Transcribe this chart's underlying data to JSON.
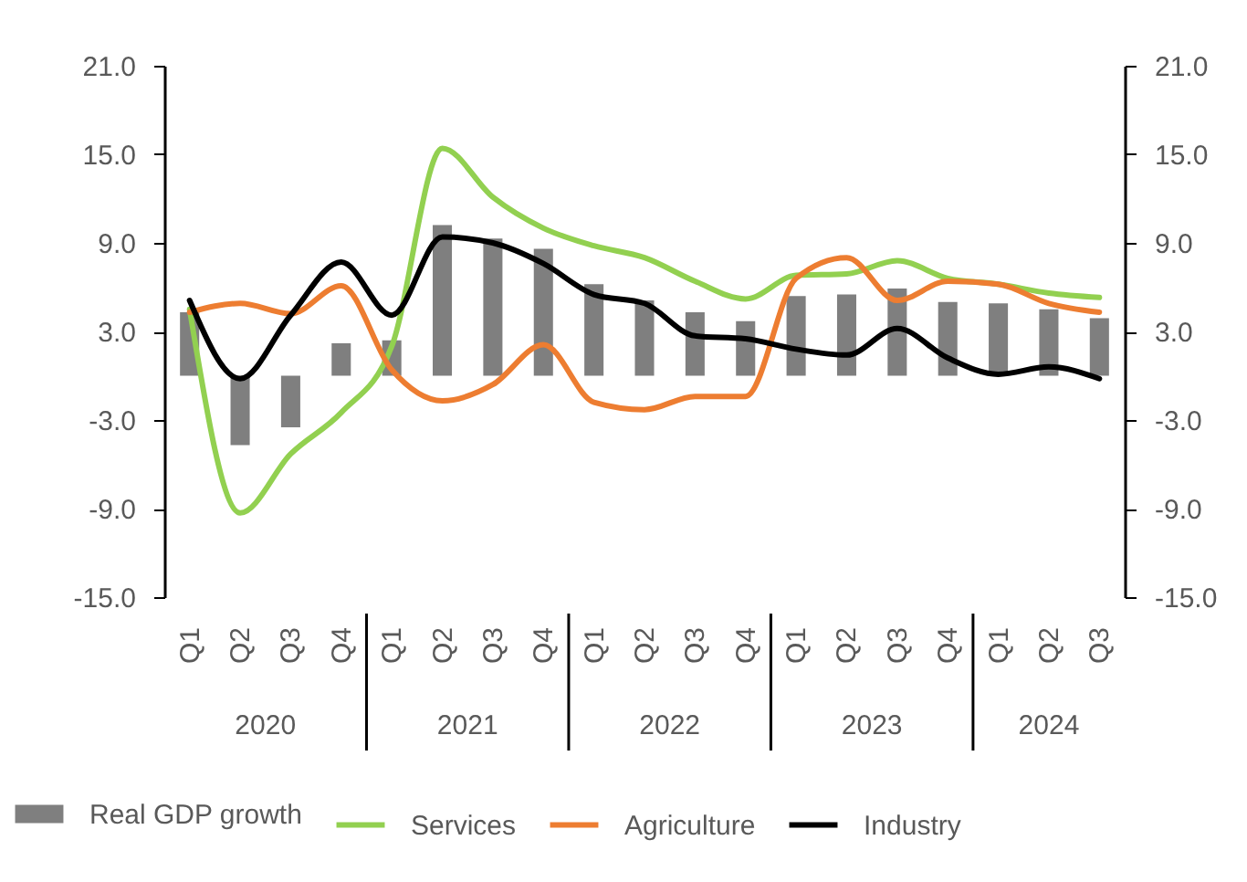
{
  "chart_data": {
    "type": "bar",
    "categories": [
      "Q1",
      "Q2",
      "Q3",
      "Q4",
      "Q1",
      "Q2",
      "Q3",
      "Q4",
      "Q1",
      "Q2",
      "Q3",
      "Q4",
      "Q1",
      "Q2",
      "Q3",
      "Q4",
      "Q1",
      "Q2",
      "Q3"
    ],
    "annotations": [
      "2020",
      "2021",
      "2022",
      "2023",
      "2024"
    ],
    "series": [
      {
        "name": "Real GDP growth",
        "color": "#7f7f7f",
        "values": [
          4.3,
          -4.7,
          -3.5,
          2.2,
          2.4,
          10.2,
          9.3,
          8.6,
          6.2,
          5.1,
          4.3,
          3.7,
          5.4,
          5.5,
          5.9,
          5.0,
          4.9,
          4.5,
          3.9
        ]
      },
      {
        "name": "Services",
        "type": "line",
        "color": "#92d050",
        "values": [
          4.5,
          -9.3,
          -5.3,
          -2.5,
          2.0,
          15.4,
          12.1,
          10.0,
          8.8,
          8.0,
          6.4,
          5.2,
          6.8,
          6.9,
          7.8,
          6.6,
          6.2,
          5.6,
          5.3
        ]
      },
      {
        "name": "Agriculture",
        "type": "line",
        "color": "#ed7d31",
        "values": [
          4.3,
          4.9,
          4.2,
          6.1,
          0.4,
          -1.7,
          -0.6,
          2.1,
          -1.8,
          -2.3,
          -1.4,
          -1.4,
          6.6,
          8.0,
          5.1,
          6.4,
          6.2,
          4.9,
          4.3
        ]
      },
      {
        "name": "Industry",
        "type": "line",
        "color": "#000000",
        "values": [
          5.1,
          -0.2,
          4.1,
          7.7,
          4.1,
          9.4,
          9.0,
          7.6,
          5.5,
          4.9,
          2.7,
          2.5,
          1.8,
          1.4,
          3.2,
          1.2,
          0.1,
          0.6,
          -0.2
        ]
      }
    ],
    "ylim": [
      -15,
      21
    ],
    "yticks": [
      {
        "value": -15,
        "label": "-15.0"
      },
      {
        "value": -9,
        "label": "-9.0"
      },
      {
        "value": -3,
        "label": "-3.0"
      },
      {
        "value": 3,
        "label": "3.0"
      },
      {
        "value": 9,
        "label": "9.0"
      },
      {
        "value": 15,
        "label": "15.0"
      },
      {
        "value": 21,
        "label": "21.0"
      }
    ],
    "y2lim": [
      -15,
      21
    ],
    "y2ticks": [
      {
        "value": -15,
        "label": "-15.0"
      },
      {
        "value": -9,
        "label": "-9.0"
      },
      {
        "value": -3,
        "label": "-3.0"
      },
      {
        "value": 3,
        "label": "3.0"
      },
      {
        "value": 9,
        "label": "9.0"
      },
      {
        "value": 15,
        "label": "15.0"
      },
      {
        "value": 21,
        "label": "21.0"
      }
    ],
    "grid": false,
    "legend": "bottom"
  }
}
